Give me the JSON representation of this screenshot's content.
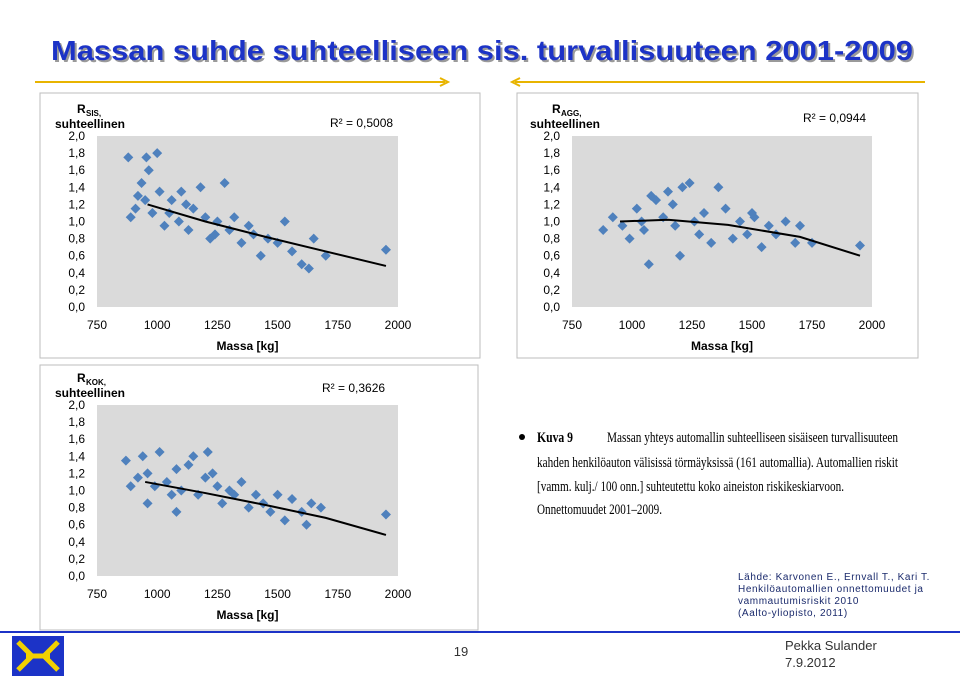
{
  "slide": {
    "title": "Massan suhde suhteelliseen sis. turvallisuuteen 2001-2009",
    "caption": {
      "label": "Kuva 9",
      "lines": [
        "Massan yhteys automallin suhteelliseen sisäiseen turvallisuuteen",
        "kahden henkilöauton välisissä törmäyksissä (161 automallia). Automallien riskit",
        "[vamm. kulj./ 100 onn.] suhteutettu koko aineiston riskikeskiarvoon.",
        "Onnettomuudet 2001–2009."
      ]
    },
    "source": [
      "Lähde: Karvonen E., Ernvall T., Kari T.",
      "Henkilöautomallien onnettomuudet ja",
      "vammautumisriskit 2010",
      "(Aalto-yliopisto, 2011)"
    ],
    "page_number": "19",
    "author": "Pekka Sulander",
    "date": "7.9.2012"
  },
  "chart_data": [
    {
      "type": "scatter",
      "ylabel": {
        "symbol": "R",
        "subscript": "SIS,",
        "text": "suhteellinen"
      },
      "xlabel": "Massa [kg]",
      "annotation": "R² = 0,5008",
      "color": "#4f81bd",
      "xlim": [
        750,
        2000
      ],
      "xticks": [
        750,
        1000,
        1250,
        1500,
        1750,
        2000
      ],
      "ylim": [
        0,
        2
      ],
      "yticks": [
        {
          "value": 0,
          "label": "0,0"
        },
        {
          "value": 0.2,
          "label": "0,2"
        },
        {
          "value": 0.4,
          "label": "0,4"
        },
        {
          "value": 0.6,
          "label": "0,6"
        },
        {
          "value": 0.8,
          "label": "0,8"
        },
        {
          "value": 1,
          "label": "1,0"
        },
        {
          "value": 1.2,
          "label": "1,2"
        },
        {
          "value": 1.4,
          "label": "1,4"
        },
        {
          "value": 1.6,
          "label": "1,6"
        },
        {
          "value": 1.8,
          "label": "1,8"
        },
        {
          "value": 2,
          "label": "2,0"
        }
      ],
      "x": [
        880,
        935,
        955,
        965,
        1000,
        890,
        920,
        950,
        980,
        1010,
        1030,
        1060,
        1090,
        1100,
        1130,
        1150,
        1180,
        1200,
        1220,
        1250,
        1280,
        1300,
        1320,
        1350,
        1380,
        1400,
        1430,
        1460,
        1500,
        1530,
        1560,
        1600,
        1630,
        1650,
        1700,
        1950,
        910,
        1050,
        1120,
        1240
      ],
      "values": [
        1.75,
        1.45,
        1.75,
        1.6,
        1.8,
        1.05,
        1.3,
        1.25,
        1.1,
        1.35,
        0.95,
        1.25,
        1.0,
        1.35,
        0.9,
        1.15,
        1.4,
        1.05,
        0.8,
        1.0,
        1.45,
        0.9,
        1.05,
        0.75,
        0.95,
        0.85,
        0.6,
        0.8,
        0.75,
        1.0,
        0.65,
        0.5,
        0.45,
        0.8,
        0.6,
        0.67,
        1.15,
        1.1,
        1.2,
        0.85
      ],
      "trendline": {
        "x": [
          960,
          1200,
          1450,
          1700,
          1950
        ],
        "values": [
          1.2,
          1.0,
          0.82,
          0.65,
          0.48
        ]
      }
    },
    {
      "type": "scatter",
      "ylabel": {
        "symbol": "R",
        "subscript": "AGG,",
        "text": "suhteellinen"
      },
      "xlabel": "Massa [kg]",
      "annotation": "R² = 0,0944",
      "color": "#4f81bd",
      "xlim": [
        750,
        2000
      ],
      "xticks": [
        750,
        1000,
        1250,
        1500,
        1750,
        2000
      ],
      "ylim": [
        0,
        2
      ],
      "yticks": [
        {
          "value": 0,
          "label": "0,0"
        },
        {
          "value": 0.2,
          "label": "0,2"
        },
        {
          "value": 0.4,
          "label": "0,4"
        },
        {
          "value": 0.6,
          "label": "0,6"
        },
        {
          "value": 0.8,
          "label": "0,8"
        },
        {
          "value": 1,
          "label": "1,0"
        },
        {
          "value": 1.2,
          "label": "1,2"
        },
        {
          "value": 1.4,
          "label": "1,4"
        },
        {
          "value": 1.6,
          "label": "1,6"
        },
        {
          "value": 1.8,
          "label": "1,8"
        },
        {
          "value": 2,
          "label": "2,0"
        }
      ],
      "x": [
        880,
        920,
        960,
        990,
        1020,
        1050,
        1080,
        1100,
        1130,
        1150,
        1180,
        1210,
        1240,
        1260,
        1280,
        1300,
        1330,
        1360,
        1390,
        1420,
        1450,
        1480,
        1510,
        1540,
        1570,
        1600,
        1640,
        1680,
        1700,
        1750,
        1950,
        1070,
        1200,
        1040,
        1170,
        1500
      ],
      "values": [
        0.9,
        1.05,
        0.95,
        0.8,
        1.15,
        0.9,
        1.3,
        1.25,
        1.05,
        1.35,
        0.95,
        1.4,
        1.45,
        1.0,
        0.85,
        1.1,
        0.75,
        1.4,
        1.15,
        0.8,
        1.0,
        0.85,
        1.05,
        0.7,
        0.95,
        0.85,
        1.0,
        0.75,
        0.95,
        0.75,
        0.72,
        0.5,
        0.6,
        1.0,
        1.2,
        1.1
      ],
      "trendline": {
        "x": [
          950,
          1150,
          1400,
          1700,
          1950
        ],
        "values": [
          1.0,
          1.02,
          0.96,
          0.82,
          0.6
        ]
      }
    },
    {
      "type": "scatter",
      "ylabel": {
        "symbol": "R",
        "subscript": "KOK,",
        "text": "suhteellinen"
      },
      "xlabel": "Massa [kg]",
      "annotation": "R² = 0,3626",
      "color": "#4f81bd",
      "xlim": [
        750,
        2000
      ],
      "xticks": [
        750,
        1000,
        1250,
        1500,
        1750,
        2000
      ],
      "ylim": [
        0,
        2
      ],
      "yticks": [
        {
          "value": 0,
          "label": "0,0"
        },
        {
          "value": 0.2,
          "label": "0,2"
        },
        {
          "value": 0.4,
          "label": "0,4"
        },
        {
          "value": 0.6,
          "label": "0,6"
        },
        {
          "value": 0.8,
          "label": "0,8"
        },
        {
          "value": 1,
          "label": "1,0"
        },
        {
          "value": 1.2,
          "label": "1,2"
        },
        {
          "value": 1.4,
          "label": "1,4"
        },
        {
          "value": 1.6,
          "label": "1,6"
        },
        {
          "value": 1.8,
          "label": "1,8"
        },
        {
          "value": 2,
          "label": "2,0"
        }
      ],
      "x": [
        870,
        890,
        920,
        940,
        960,
        990,
        1010,
        1040,
        1060,
        1080,
        1100,
        1130,
        1150,
        1170,
        1200,
        1230,
        1250,
        1270,
        1300,
        1320,
        1350,
        1380,
        1410,
        1440,
        1470,
        1500,
        1530,
        1560,
        1600,
        1640,
        1680,
        1950,
        960,
        1080,
        1210,
        1620
      ],
      "values": [
        1.35,
        1.05,
        1.15,
        1.4,
        1.2,
        1.05,
        1.45,
        1.1,
        0.95,
        1.25,
        1.0,
        1.3,
        1.4,
        0.95,
        1.15,
        1.2,
        1.05,
        0.85,
        1.0,
        0.95,
        1.1,
        0.8,
        0.95,
        0.85,
        0.75,
        0.95,
        0.65,
        0.9,
        0.75,
        0.85,
        0.8,
        0.72,
        0.85,
        0.75,
        1.45,
        0.6
      ],
      "trendline": {
        "x": [
          950,
          1200,
          1450,
          1700,
          1950
        ],
        "values": [
          1.1,
          0.97,
          0.83,
          0.68,
          0.48
        ]
      }
    }
  ]
}
